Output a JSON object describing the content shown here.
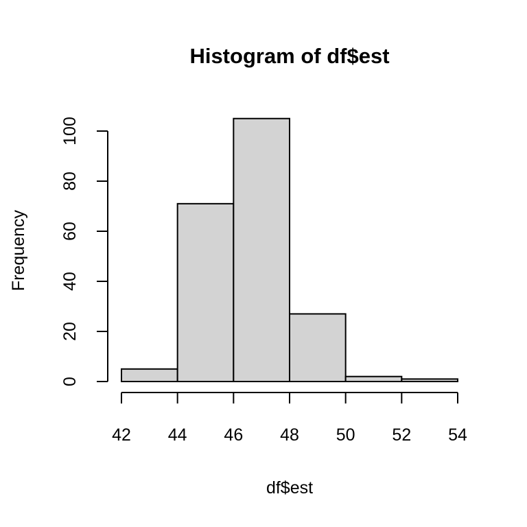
{
  "chart_data": {
    "type": "bar",
    "title": "Histogram of df$est",
    "xlabel": "df$est",
    "ylabel": "Frequency",
    "bins": [
      {
        "start": 42,
        "end": 44,
        "count": 5
      },
      {
        "start": 44,
        "end": 46,
        "count": 71
      },
      {
        "start": 46,
        "end": 48,
        "count": 105
      },
      {
        "start": 48,
        "end": 50,
        "count": 27
      },
      {
        "start": 50,
        "end": 52,
        "count": 2
      },
      {
        "start": 52,
        "end": 54,
        "count": 1
      }
    ],
    "xlim": [
      42,
      54
    ],
    "ylim": [
      0,
      105
    ],
    "xticks": [
      42,
      44,
      46,
      48,
      50,
      52,
      54
    ],
    "yticks": [
      0,
      20,
      40,
      60,
      80,
      100
    ],
    "bar_color": "#d3d3d3",
    "edge_color": "#000000",
    "grid": false,
    "legend": "none"
  }
}
